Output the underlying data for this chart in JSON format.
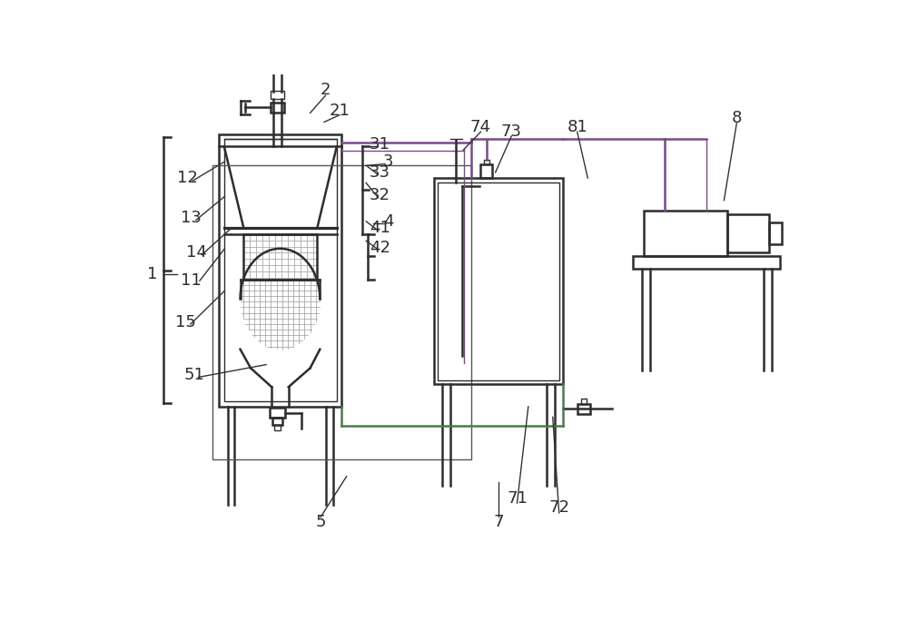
{
  "bg_color": "#ffffff",
  "lc": "#2d2d2d",
  "green": "#4a7a4a",
  "purple": "#7a4a8a",
  "label_fs": 13,
  "lw": 1.8,
  "lw_thin": 1.0
}
